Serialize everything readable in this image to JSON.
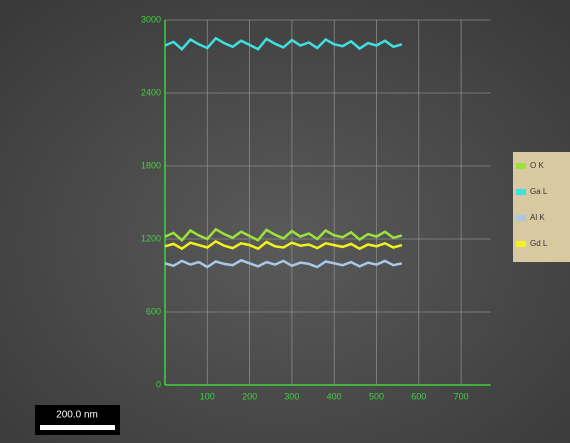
{
  "chart_data": {
    "type": "line",
    "x": [
      0,
      20,
      40,
      60,
      80,
      100,
      120,
      140,
      160,
      180,
      200,
      220,
      240,
      260,
      280,
      300,
      320,
      340,
      360,
      380,
      400,
      420,
      440,
      460,
      480,
      500,
      520,
      540,
      560
    ],
    "series": [
      {
        "name": "O  K",
        "color": "#9be23a",
        "values": [
          1220,
          1250,
          1190,
          1270,
          1230,
          1200,
          1280,
          1240,
          1210,
          1260,
          1225,
          1190,
          1275,
          1235,
          1205,
          1265,
          1220,
          1245,
          1200,
          1270,
          1230,
          1215,
          1255,
          1195,
          1240,
          1220,
          1260,
          1210,
          1230
        ]
      },
      {
        "name": "Ga L",
        "color": "#3fe0e0",
        "values": [
          2790,
          2820,
          2760,
          2840,
          2800,
          2770,
          2850,
          2810,
          2780,
          2830,
          2795,
          2760,
          2845,
          2805,
          2775,
          2835,
          2790,
          2815,
          2770,
          2840,
          2800,
          2785,
          2825,
          2765,
          2810,
          2790,
          2830,
          2780,
          2800
        ]
      },
      {
        "name": "Al K",
        "color": "#a8c8e8",
        "values": [
          1000,
          980,
          1020,
          990,
          1010,
          970,
          1015,
          995,
          985,
          1025,
          1000,
          975,
          1010,
          990,
          1020,
          980,
          1005,
          995,
          970,
          1015,
          1000,
          985,
          1010,
          975,
          1005,
          990,
          1020,
          985,
          1000
        ]
      },
      {
        "name": "Gd L",
        "color": "#f2f21e",
        "values": [
          1140,
          1160,
          1120,
          1170,
          1150,
          1130,
          1180,
          1145,
          1125,
          1165,
          1150,
          1120,
          1175,
          1140,
          1130,
          1170,
          1145,
          1155,
          1125,
          1165,
          1150,
          1135,
          1160,
          1120,
          1155,
          1140,
          1165,
          1130,
          1150
        ]
      }
    ],
    "xlim": [
      0,
      770
    ],
    "xticks": [
      100,
      200,
      300,
      400,
      500,
      600,
      700
    ],
    "ylim": [
      0,
      3000
    ],
    "yticks": [
      0,
      600,
      1200,
      1800,
      2400,
      3000
    ],
    "grid": true
  },
  "scale_bar": "200.0 nm"
}
